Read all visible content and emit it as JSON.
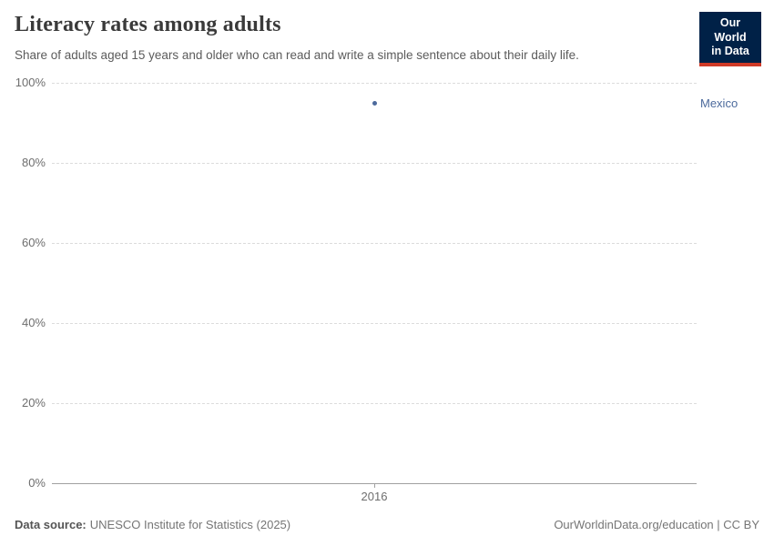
{
  "header": {
    "title": "Literacy rates among adults",
    "subtitle": "Share of adults aged 15 years and older who can read and write a simple sentence about their daily life.",
    "logo": {
      "line1": "Our World",
      "line2": "in Data"
    }
  },
  "chart_data": {
    "type": "scatter",
    "title": "Literacy rates among adults",
    "subtitle": "Share of adults aged 15 years and older who can read and write a simple sentence about their daily life.",
    "series": [
      {
        "name": "Mexico",
        "color": "#4c6a9c",
        "points": [
          {
            "x": 2016,
            "y": 94.8
          }
        ]
      }
    ],
    "xlim": [
      2015.5,
      2016.5
    ],
    "ylim": [
      0,
      100
    ],
    "xticks": [
      {
        "value": 2016,
        "label": "2016"
      }
    ],
    "yticks": [
      {
        "value": 0,
        "label": "0%"
      },
      {
        "value": 20,
        "label": "20%"
      },
      {
        "value": 40,
        "label": "40%"
      },
      {
        "value": 60,
        "label": "60%"
      },
      {
        "value": 80,
        "label": "80%"
      },
      {
        "value": 100,
        "label": "100%"
      }
    ],
    "grid": true,
    "legend_position": "right-of-point",
    "entity_label": "Mexico"
  },
  "footer": {
    "source_label": "Data source:",
    "source_text": "UNESCO Institute for Statistics (2025)",
    "link_text": "OurWorldinData.org/education | CC BY"
  },
  "colors": {
    "accent": "#4c6a9c",
    "logo_bg": "#002147",
    "logo_stripe": "#cf3a27",
    "grid": "#dcdcdc",
    "axis": "#a0a0a0",
    "text_muted": "#6e6e6e"
  }
}
